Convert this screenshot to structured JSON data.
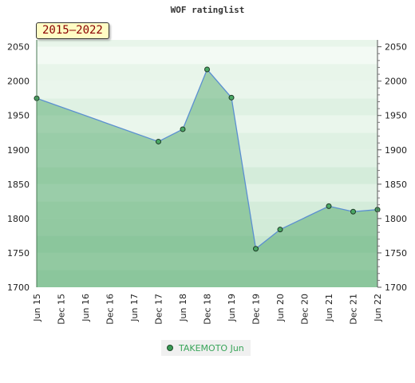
{
  "chart_data": {
    "type": "area",
    "title": "WOF ratinglist",
    "period_label": "2015–2022",
    "x_tick_labels": [
      "Jun 15",
      "Dec 15",
      "Jun 16",
      "Dec 16",
      "Jun 17",
      "Dec 17",
      "Jun 18",
      "Dec 18",
      "Jun 19",
      "Dec 19",
      "Jun 20",
      "Dec 20",
      "Jun 21",
      "Dec 21",
      "Jun 22"
    ],
    "y_ticks": [
      1700,
      1750,
      1800,
      1850,
      1900,
      1950,
      2000,
      2050
    ],
    "ylim": [
      1700,
      2060
    ],
    "series": [
      {
        "name": "TAKEMOTO Jun",
        "color": "#3a9a55",
        "points": [
          {
            "x": "Jun 15",
            "y": 1975
          },
          {
            "x": "Dec 17",
            "y": 1912
          },
          {
            "x": "Jun 18",
            "y": 1930
          },
          {
            "x": "Dec 18",
            "y": 2017
          },
          {
            "x": "Jun 19",
            "y": 1976
          },
          {
            "x": "Dec 19",
            "y": 1756
          },
          {
            "x": "Jun 20",
            "y": 1784
          },
          {
            "x": "Jun 21",
            "y": 1818
          },
          {
            "x": "Dec 21",
            "y": 1810
          },
          {
            "x": "Jun 22",
            "y": 1813
          }
        ]
      }
    ],
    "legend_position": "bottom-center",
    "grid": true
  }
}
